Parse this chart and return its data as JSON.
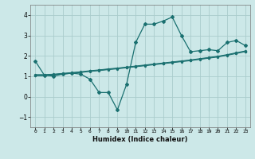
{
  "xlabel": "Humidex (Indice chaleur)",
  "bg_color": "#cce8e8",
  "grid_color": "#aacccc",
  "line_color": "#1a7070",
  "xlim": [
    -0.5,
    23.5
  ],
  "ylim": [
    -1.5,
    4.5
  ],
  "xticks": [
    0,
    1,
    2,
    3,
    4,
    5,
    6,
    7,
    8,
    9,
    10,
    11,
    12,
    13,
    14,
    15,
    16,
    17,
    18,
    19,
    20,
    21,
    22,
    23
  ],
  "yticks": [
    -1,
    0,
    1,
    2,
    3,
    4
  ],
  "series1_x": [
    0,
    1,
    2,
    3,
    4,
    5,
    6,
    7,
    8,
    9,
    10,
    11,
    12,
    13,
    14,
    15,
    16,
    17,
    18,
    19,
    20,
    21,
    22,
    23
  ],
  "series1_y": [
    1.75,
    1.05,
    1.0,
    1.1,
    1.15,
    1.1,
    0.85,
    0.2,
    0.2,
    -0.65,
    0.6,
    2.65,
    3.55,
    3.55,
    3.7,
    3.9,
    3.0,
    2.2,
    2.25,
    2.3,
    2.25,
    2.65,
    2.75,
    2.5
  ],
  "series2_x": [
    0,
    1,
    2,
    3,
    4,
    5,
    6,
    7,
    8,
    9,
    10,
    11,
    12,
    13,
    14,
    15,
    16,
    17,
    18,
    19,
    20,
    21,
    22,
    23
  ],
  "series2_y": [
    1.08,
    1.08,
    1.1,
    1.14,
    1.18,
    1.22,
    1.27,
    1.31,
    1.36,
    1.4,
    1.45,
    1.5,
    1.55,
    1.6,
    1.65,
    1.7,
    1.75,
    1.8,
    1.86,
    1.92,
    1.98,
    2.06,
    2.15,
    2.24
  ],
  "series3_x": [
    0,
    1,
    2,
    3,
    4,
    5,
    6,
    7,
    8,
    9,
    10,
    11,
    12,
    13,
    14,
    15,
    16,
    17,
    18,
    19,
    20,
    21,
    22,
    23
  ],
  "series3_y": [
    1.02,
    1.02,
    1.06,
    1.1,
    1.14,
    1.18,
    1.23,
    1.27,
    1.32,
    1.36,
    1.41,
    1.46,
    1.51,
    1.56,
    1.61,
    1.66,
    1.71,
    1.76,
    1.82,
    1.88,
    1.94,
    2.02,
    2.11,
    2.2
  ],
  "series4_x": [
    0,
    1,
    2,
    3,
    4,
    5,
    6,
    7,
    8,
    9,
    10,
    11,
    12,
    13,
    14,
    15,
    16,
    17,
    18,
    19,
    20,
    21,
    22,
    23
  ],
  "series4_y": [
    1.05,
    1.05,
    1.08,
    1.12,
    1.16,
    1.2,
    1.25,
    1.29,
    1.34,
    1.38,
    1.43,
    1.48,
    1.53,
    1.58,
    1.63,
    1.68,
    1.73,
    1.78,
    1.84,
    1.9,
    1.96,
    2.04,
    2.13,
    2.22
  ]
}
